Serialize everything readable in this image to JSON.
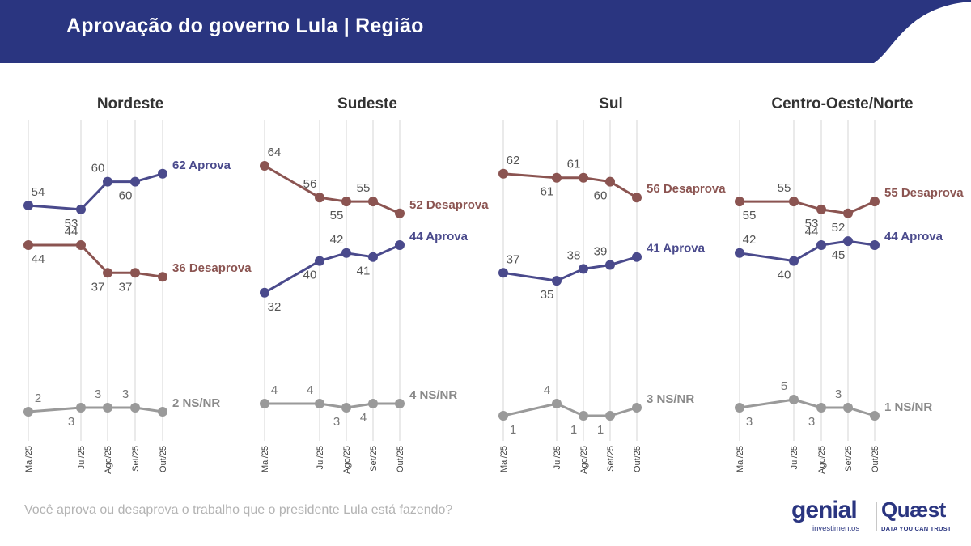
{
  "header": {
    "title": "Aprovação do governo Lula | Região",
    "color": "#2a3580"
  },
  "colors": {
    "aprova": "#4a4a8c",
    "desaprova": "#8b5451",
    "nsnr": "#9a9a9a",
    "label": "#555555",
    "grid": "#dcdcdc"
  },
  "chart_data": [
    {
      "type": "line",
      "title": "Nordeste",
      "categories": [
        "Mai/25",
        "Jul/25",
        "Ago/25",
        "Set/25",
        "Out/25"
      ],
      "series": [
        {
          "name": "Aprova",
          "end_label": "62 Aprova",
          "values": [
            54,
            53,
            60,
            60,
            62
          ]
        },
        {
          "name": "Desaprova",
          "end_label": "36 Desaprova",
          "values": [
            44,
            44,
            37,
            37,
            36
          ]
        },
        {
          "name": "NS/NR",
          "end_label": "2 NS/NR",
          "values": [
            2,
            3,
            3,
            3,
            2
          ]
        }
      ]
    },
    {
      "type": "line",
      "title": "Sudeste",
      "categories": [
        "Mai/25",
        "Jul/25",
        "Ago/25",
        "Set/25",
        "Out/25"
      ],
      "series": [
        {
          "name": "Aprova",
          "end_label": "44 Aprova",
          "values": [
            32,
            40,
            42,
            41,
            44
          ]
        },
        {
          "name": "Desaprova",
          "end_label": "52 Desaprova",
          "values": [
            64,
            56,
            55,
            55,
            52
          ]
        },
        {
          "name": "NS/NR",
          "end_label": "4 NS/NR",
          "values": [
            4,
            4,
            3,
            4,
            4
          ]
        }
      ]
    },
    {
      "type": "line",
      "title": "Sul",
      "categories": [
        "Mai/25",
        "Jul/25",
        "Ago/25",
        "Set/25",
        "Out/25"
      ],
      "series": [
        {
          "name": "Aprova",
          "end_label": "41 Aprova",
          "values": [
            37,
            35,
            38,
            39,
            41
          ]
        },
        {
          "name": "Desaprova",
          "end_label": "56 Desaprova",
          "values": [
            62,
            61,
            61,
            60,
            56
          ]
        },
        {
          "name": "NS/NR",
          "end_label": "3 NS/NR",
          "values": [
            1,
            4,
            1,
            1,
            3
          ]
        }
      ]
    },
    {
      "type": "line",
      "title": "Centro-Oeste/Norte",
      "categories": [
        "Mai/25",
        "Jul/25",
        "Ago/25",
        "Set/25",
        "Out/25"
      ],
      "series": [
        {
          "name": "Aprova",
          "end_label": "44 Aprova",
          "values": [
            42,
            40,
            44,
            45,
            44
          ]
        },
        {
          "name": "Desaprova",
          "end_label": "55 Desaprova",
          "values": [
            55,
            55,
            53,
            52,
            55
          ]
        },
        {
          "name": "NS/NR",
          "end_label": "1 NS/NR",
          "values": [
            3,
            5,
            3,
            3,
            1
          ]
        }
      ]
    }
  ],
  "footer": {
    "question": "Você aprova ou desaprova o trabalho que o presidente Lula está fazendo?",
    "logo_genial": "genial",
    "logo_genial_sub": "investimentos",
    "logo_quaest": "Quæst",
    "logo_quaest_sub": "DATA YOU CAN TRUST"
  }
}
